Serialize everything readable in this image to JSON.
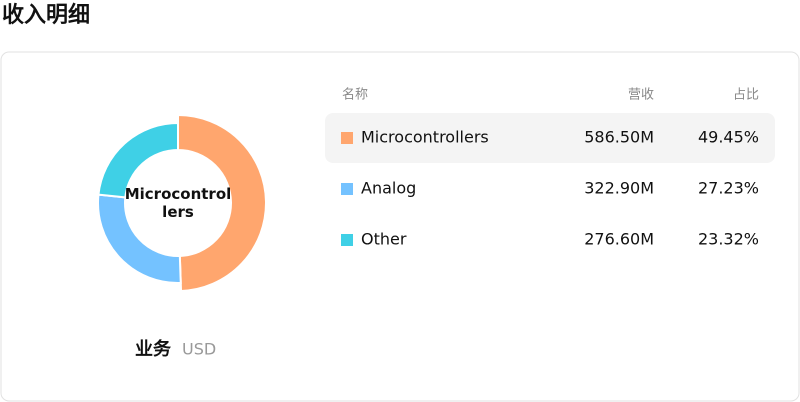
{
  "title": "收入明细",
  "chart_data": {
    "type": "pie",
    "categories": [
      "Microcontrollers",
      "Analog",
      "Other"
    ],
    "values": [
      586.5,
      322.9,
      276.6
    ],
    "value_labels": [
      "586.50M",
      "322.90M",
      "276.60M"
    ],
    "shares": [
      "49.45%",
      "27.23%",
      "23.32%"
    ],
    "colors": [
      "#ffa66e",
      "#74c2ff",
      "#3fd0e6"
    ],
    "selected": 0
  },
  "caption": {
    "title": "业务",
    "unit": "USD"
  },
  "table": {
    "headers": [
      "名称",
      "营收",
      "占比"
    ]
  }
}
